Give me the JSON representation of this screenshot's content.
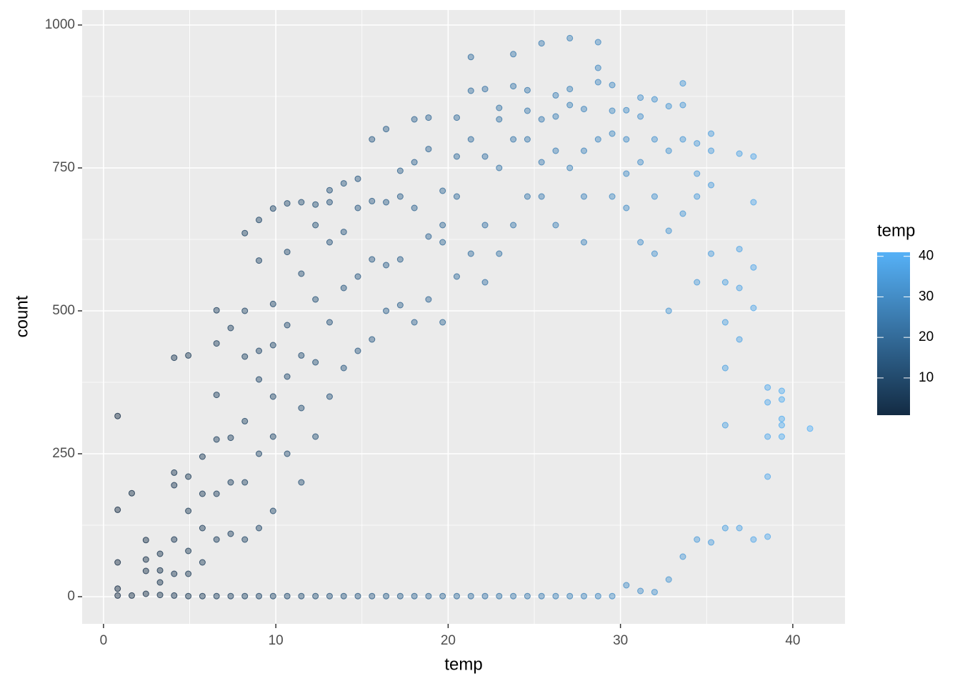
{
  "chart_data": {
    "type": "scatter",
    "x_label": "temp",
    "y_label": "count",
    "xlim": [
      -1.24,
      43.03
    ],
    "ylim": [
      -47.5,
      1026.25
    ],
    "xticks": [
      0,
      10,
      20,
      30,
      40
    ],
    "yticks": [
      0,
      250,
      500,
      750,
      1000
    ],
    "x_minor_ticks": [
      5,
      15,
      25,
      35
    ],
    "y_minor_ticks": [
      125,
      375,
      625,
      875
    ],
    "grid": true,
    "legend_title": "temp",
    "color_low": "#132B43",
    "color_high": "#56B1F7",
    "color_limits": [
      0.82,
      41
    ],
    "color_ticks": [
      10,
      20,
      30,
      40
    ],
    "x": [
      0.82,
      0.82,
      0.82,
      0.82,
      0.82,
      1.64,
      1.64,
      2.46,
      2.46,
      2.46,
      2.46,
      3.28,
      3.28,
      3.28,
      3.28,
      4.1,
      4.1,
      4.1,
      4.1,
      4.1,
      4.1,
      4.92,
      4.92,
      4.92,
      4.92,
      4.92,
      4.92,
      5.74,
      5.74,
      5.74,
      5.74,
      5.74,
      6.56,
      6.56,
      6.56,
      6.56,
      6.56,
      6.56,
      6.56,
      7.38,
      7.38,
      7.38,
      7.38,
      7.38,
      8.2,
      8.2,
      8.2,
      8.2,
      8.2,
      8.2,
      8.2,
      9.02,
      9.02,
      9.02,
      9.02,
      9.02,
      9.02,
      9.02,
      9.84,
      9.84,
      9.84,
      9.84,
      9.84,
      9.84,
      9.84,
      10.66,
      10.66,
      10.66,
      10.66,
      10.66,
      10.66,
      11.48,
      11.48,
      11.48,
      11.48,
      11.48,
      11.48,
      12.3,
      12.3,
      12.3,
      12.3,
      12.3,
      12.3,
      13.12,
      13.12,
      13.12,
      13.12,
      13.12,
      13.12,
      13.94,
      13.94,
      13.94,
      13.94,
      13.94,
      14.76,
      14.76,
      14.76,
      14.76,
      14.76,
      15.58,
      15.58,
      15.58,
      15.58,
      15.58,
      16.4,
      16.4,
      16.4,
      16.4,
      16.4,
      17.22,
      17.22,
      17.22,
      17.22,
      17.22,
      18.04,
      18.04,
      18.04,
      18.04,
      18.04,
      18.86,
      18.86,
      18.86,
      18.86,
      18.86,
      19.68,
      19.68,
      19.68,
      19.68,
      19.68,
      20.5,
      20.5,
      20.5,
      20.5,
      20.5,
      21.32,
      21.32,
      21.32,
      21.32,
      21.32,
      22.14,
      22.14,
      22.14,
      22.14,
      22.14,
      22.96,
      22.96,
      22.96,
      22.96,
      22.96,
      23.78,
      23.78,
      23.78,
      23.78,
      23.78,
      24.6,
      24.6,
      24.6,
      24.6,
      24.6,
      25.42,
      25.42,
      25.42,
      25.42,
      25.42,
      26.24,
      26.24,
      26.24,
      26.24,
      26.24,
      27.06,
      27.06,
      27.06,
      27.06,
      27.06,
      27.88,
      27.88,
      27.88,
      27.88,
      27.88,
      28.7,
      28.7,
      28.7,
      28.7,
      28.7,
      29.52,
      29.52,
      29.52,
      29.52,
      29.52,
      30.34,
      30.34,
      30.34,
      30.34,
      30.34,
      31.16,
      31.16,
      31.16,
      31.16,
      31.16,
      31.98,
      31.98,
      31.98,
      31.98,
      31.98,
      32.8,
      32.8,
      32.8,
      32.8,
      32.8,
      33.62,
      33.62,
      33.62,
      33.62,
      33.62,
      34.44,
      34.44,
      34.44,
      34.44,
      34.44,
      35.26,
      35.26,
      35.26,
      35.26,
      35.26,
      36.08,
      36.08,
      36.08,
      36.08,
      36.08,
      36.9,
      36.9,
      36.9,
      36.9,
      36.9,
      37.72,
      37.72,
      37.72,
      37.72,
      37.72,
      38.54,
      38.54,
      38.54,
      38.54,
      38.54,
      39.36,
      39.36,
      39.36,
      39.36,
      39.36,
      41
    ],
    "y": [
      316,
      152,
      60,
      14,
      2,
      181,
      2,
      99,
      65,
      45,
      5,
      75,
      46,
      25,
      3,
      418,
      217,
      195,
      100,
      40,
      2,
      422,
      210,
      150,
      80,
      40,
      1,
      245,
      180,
      120,
      60,
      1,
      501,
      443,
      353,
      275,
      180,
      100,
      1,
      470,
      278,
      200,
      110,
      1,
      636,
      500,
      420,
      307,
      200,
      100,
      1,
      659,
      588,
      430,
      380,
      250,
      120,
      1,
      679,
      512,
      440,
      350,
      280,
      150,
      1,
      688,
      603,
      475,
      385,
      250,
      1,
      690,
      565,
      422,
      330,
      200,
      1,
      686,
      650,
      520,
      410,
      280,
      1,
      711,
      690,
      620,
      480,
      350,
      1,
      723,
      638,
      540,
      400,
      1,
      731,
      680,
      560,
      430,
      1,
      800,
      692,
      590,
      450,
      1,
      818,
      690,
      580,
      500,
      1,
      745,
      700,
      590,
      510,
      1,
      835,
      760,
      680,
      480,
      1,
      838,
      783,
      630,
      520,
      1,
      710,
      650,
      620,
      480,
      1,
      838,
      770,
      700,
      560,
      1,
      944,
      885,
      800,
      600,
      1,
      888,
      770,
      650,
      550,
      1,
      855,
      835,
      750,
      600,
      1,
      949,
      893,
      800,
      650,
      1,
      886,
      850,
      800,
      700,
      1,
      968,
      835,
      760,
      700,
      1,
      877,
      840,
      780,
      650,
      1,
      977,
      888,
      860,
      750,
      1,
      853,
      780,
      700,
      620,
      1,
      970,
      925,
      900,
      800,
      1,
      895,
      850,
      810,
      700,
      1,
      851,
      800,
      740,
      680,
      20,
      873,
      840,
      760,
      620,
      10,
      870,
      800,
      700,
      600,
      8,
      858,
      780,
      640,
      500,
      30,
      898,
      860,
      800,
      670,
      70,
      793,
      740,
      700,
      550,
      100,
      810,
      780,
      720,
      600,
      95,
      550,
      480,
      400,
      300,
      120,
      775,
      608,
      540,
      450,
      120,
      770,
      690,
      576,
      505,
      100,
      366,
      340,
      280,
      210,
      105,
      360,
      345,
      311,
      300,
      280,
      294
    ]
  }
}
